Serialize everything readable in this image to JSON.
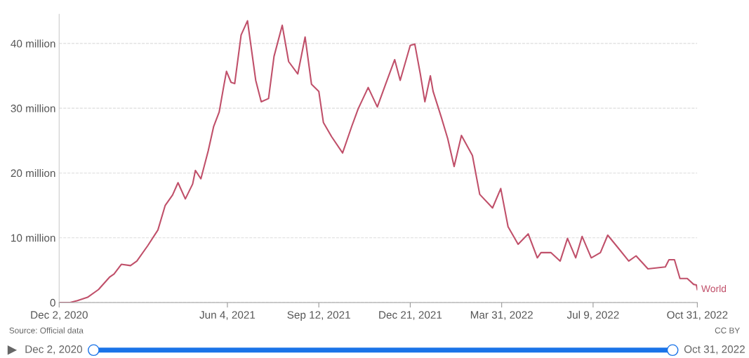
{
  "chart_data": {
    "type": "line",
    "x": [
      "2020-12-02",
      "2020-12-14",
      "2020-12-22",
      "2021-01-02",
      "2021-01-14",
      "2021-01-26",
      "2021-01-31",
      "2021-02-08",
      "2021-02-18",
      "2021-02-25",
      "2021-03-09",
      "2021-03-20",
      "2021-03-28",
      "2021-04-05",
      "2021-04-11",
      "2021-04-19",
      "2021-04-27",
      "2021-04-30",
      "2021-05-06",
      "2021-05-14",
      "2021-05-20",
      "2021-05-26",
      "2021-05-31",
      "2021-06-03",
      "2021-06-08",
      "2021-06-12",
      "2021-06-19",
      "2021-06-26",
      "2021-07-05",
      "2021-07-11",
      "2021-07-19",
      "2021-07-25",
      "2021-08-03",
      "2021-08-10",
      "2021-08-20",
      "2021-08-28",
      "2021-09-04",
      "2021-09-12",
      "2021-09-17",
      "2021-09-26",
      "2021-10-08",
      "2021-10-18",
      "2021-10-25",
      "2021-11-05",
      "2021-11-15",
      "2021-11-24",
      "2021-12-04",
      "2021-12-10",
      "2021-12-21",
      "2021-12-26",
      "2022-01-01",
      "2022-01-06",
      "2022-01-12",
      "2022-01-15",
      "2022-01-24",
      "2022-01-31",
      "2022-02-07",
      "2022-02-15",
      "2022-02-27",
      "2022-03-07",
      "2022-03-21",
      "2022-03-30",
      "2022-04-07",
      "2022-04-18",
      "2022-04-29",
      "2022-05-09",
      "2022-05-13",
      "2022-05-24",
      "2022-06-03",
      "2022-06-11",
      "2022-06-20",
      "2022-06-27",
      "2022-07-07",
      "2022-07-17",
      "2022-07-25",
      "2022-08-05",
      "2022-08-17",
      "2022-08-25",
      "2022-09-07",
      "2022-09-26",
      "2022-09-30",
      "2022-10-06",
      "2022-10-12",
      "2022-10-20",
      "2022-10-27",
      "2022-10-30",
      "2022-10-31"
    ],
    "series": [
      {
        "name": "World",
        "color": "#c0506a",
        "values": [
          0,
          0,
          0.3,
          0.8,
          2.0,
          3.9,
          4.4,
          5.9,
          5.7,
          6.4,
          8.8,
          11.2,
          15.0,
          16.6,
          18.5,
          16.0,
          18.3,
          20.4,
          19.1,
          23.4,
          27.2,
          29.4,
          33.4,
          35.7,
          34.0,
          33.8,
          41.3,
          43.5,
          34.3,
          31.0,
          31.5,
          38.0,
          42.8,
          37.2,
          35.3,
          41.0,
          33.7,
          32.6,
          27.8,
          25.6,
          23.1,
          27.2,
          29.9,
          33.2,
          30.2,
          33.7,
          37.5,
          34.3,
          39.7,
          39.9,
          35.3,
          31.0,
          35.0,
          32.6,
          28.6,
          25.3,
          21.0,
          25.8,
          22.7,
          16.7,
          14.6,
          17.6,
          11.7,
          9.0,
          10.6,
          6.9,
          7.7,
          7.7,
          6.4,
          9.9,
          6.9,
          10.2,
          6.9,
          7.7,
          10.4,
          8.5,
          6.4,
          7.2,
          5.2,
          5.5,
          6.6,
          6.6,
          3.7,
          3.7,
          2.8,
          2.7,
          2.0
        ]
      }
    ],
    "xlim": [
      "2020-12-02",
      "2022-10-31"
    ],
    "xticks": [
      {
        "value": "2020-12-02",
        "label": "Dec 2, 2020"
      },
      {
        "value": "2021-06-04",
        "label": "Jun 4, 2021"
      },
      {
        "value": "2021-09-12",
        "label": "Sep 12, 2021"
      },
      {
        "value": "2021-12-21",
        "label": "Dec 21, 2021"
      },
      {
        "value": "2022-03-31",
        "label": "Mar 31, 2022"
      },
      {
        "value": "2022-07-09",
        "label": "Jul 9, 2022"
      },
      {
        "value": "2022-10-31",
        "label": "Oct 31, 2022"
      }
    ],
    "ylim": [
      0,
      44.5
    ],
    "yticks": [
      0,
      {
        "value": 10,
        "label": "10 million"
      },
      {
        "value": 20,
        "label": "20 million"
      },
      {
        "value": 30,
        "label": "30 million"
      },
      {
        "value": 40,
        "label": "40 million"
      }
    ],
    "grid": "y",
    "line_style": "solid",
    "annotations": [
      "Source: Official data",
      "CC BY",
      "Dec 2, 2020",
      "Oct 31, 2022"
    ]
  }
}
